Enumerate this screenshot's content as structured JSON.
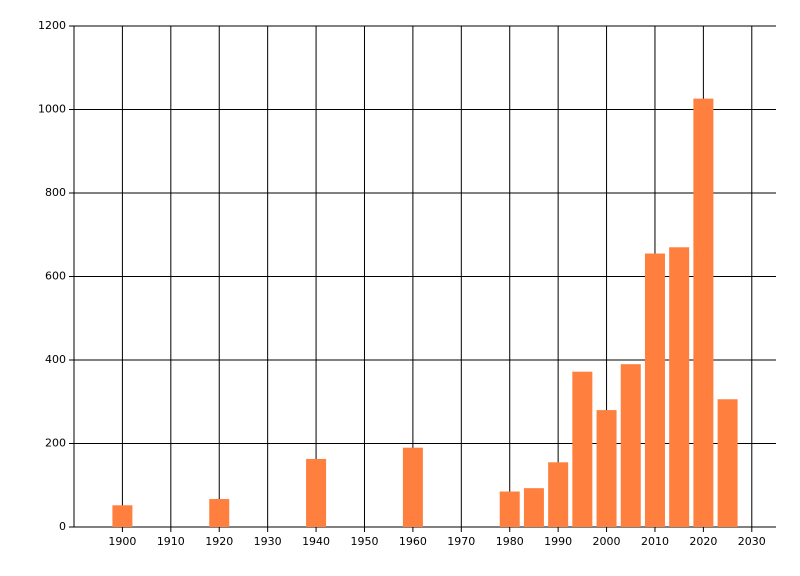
{
  "chart_data": {
    "type": "bar",
    "x": [
      1900,
      1920,
      1940,
      1960,
      1980,
      1985,
      1990,
      1995,
      2000,
      2005,
      2010,
      2015,
      2020,
      2025
    ],
    "values": [
      52,
      67,
      163,
      190,
      85,
      93,
      155,
      372,
      280,
      390,
      655,
      670,
      1026,
      306
    ],
    "color": "#ff7f3f",
    "xlim": [
      1890,
      2035
    ],
    "xticks": [
      1900,
      1910,
      1920,
      1930,
      1940,
      1950,
      1960,
      1970,
      1980,
      1990,
      2000,
      2010,
      2020,
      2030
    ],
    "ylim": [
      0,
      1200
    ],
    "yticks": [
      0,
      200,
      400,
      600,
      800,
      1000,
      1200
    ],
    "grid": true
  }
}
